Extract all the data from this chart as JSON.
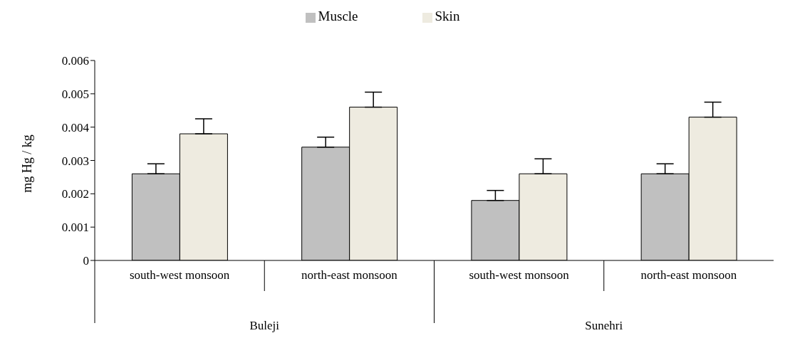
{
  "chart_data": {
    "type": "bar",
    "ylabel": "mg Hg / kg",
    "categories": [
      "south-west monsoon",
      "north-east monsoon",
      "south-west monsoon",
      "north-east monsoon"
    ],
    "annotations": [
      "Buleji",
      "Sunehri"
    ],
    "series": [
      {
        "name": "Muscle",
        "color": "#c0c0c0",
        "values": [
          0.0026,
          0.0034,
          0.0018,
          0.0026
        ],
        "errors": [
          [
            0.0026,
            0.0029
          ],
          [
            0.0034,
            0.0037
          ],
          [
            0.0018,
            0.0021
          ],
          [
            0.0026,
            0.0029
          ]
        ]
      },
      {
        "name": "Skin",
        "color": "#eeebe0",
        "values": [
          0.0038,
          0.0046,
          0.0026,
          0.0043
        ],
        "errors": [
          [
            0.0038,
            0.00425
          ],
          [
            0.0046,
            0.00505
          ],
          [
            0.0026,
            0.00305
          ],
          [
            0.0043,
            0.00475
          ]
        ]
      }
    ],
    "ylim": [
      0,
      0.006
    ],
    "yticks": [
      0,
      0.001,
      0.002,
      0.003,
      0.004,
      0.005,
      0.006
    ],
    "grid": false,
    "legend": "top"
  }
}
